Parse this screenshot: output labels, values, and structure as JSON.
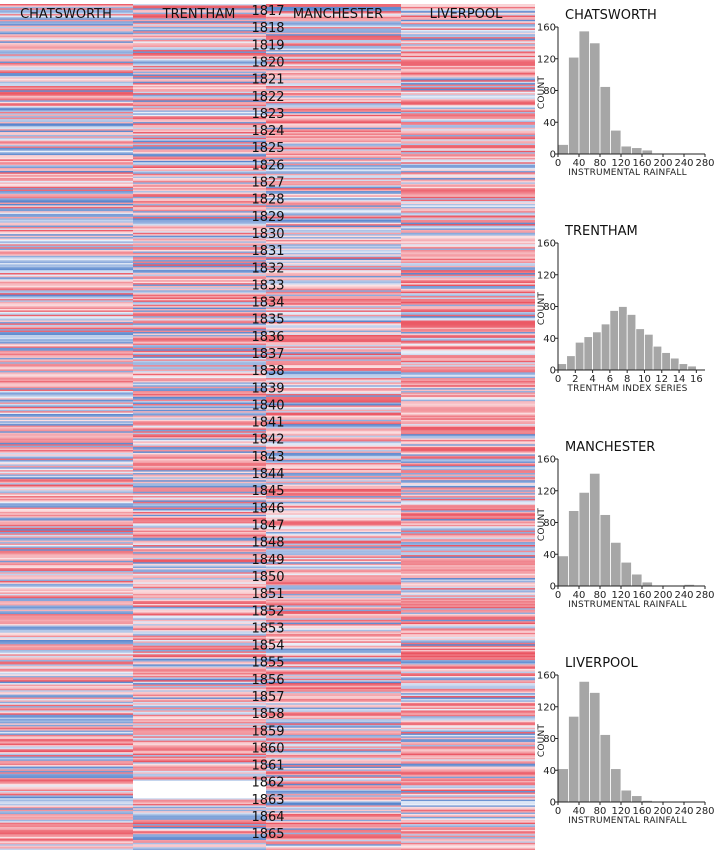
{
  "stripe_columns": [
    "CHATSWORTH",
    "TRENTHAM",
    "MANCHESTER",
    "LIVERPOOL"
  ],
  "years": [
    "1817",
    "1818",
    "1819",
    "1820",
    "1821",
    "1822",
    "1823",
    "1824",
    "1825",
    "1826",
    "1827",
    "1828",
    "1829",
    "1830",
    "1831",
    "1832",
    "1833",
    "1834",
    "1835",
    "1836",
    "1837",
    "1838",
    "1839",
    "1840",
    "1841",
    "1842",
    "1843",
    "1844",
    "1845",
    "1846",
    "1847",
    "1848",
    "1849",
    "1850",
    "1851",
    "1852",
    "1853",
    "1854",
    "1855",
    "1856",
    "1857",
    "1858",
    "1859",
    "1860",
    "1861",
    "1862",
    "1863",
    "1864",
    "1865"
  ],
  "colors": {
    "wet": "#3a6fc4",
    "dry": "#e8414f",
    "bar": "#a6a6a6",
    "bar_stroke": "#ffffff",
    "axis": "#222222"
  },
  "chart_data": [
    {
      "type": "heatmap",
      "title": "",
      "columns": [
        "CHATSWORTH",
        "TRENTHAM",
        "MANCHESTER",
        "LIVERPOOL"
      ],
      "x_labels": [
        "1817",
        "1818",
        "1819",
        "1820",
        "1821",
        "1822",
        "1823",
        "1824",
        "1825",
        "1826",
        "1827",
        "1828",
        "1829",
        "1830",
        "1831",
        "1832",
        "1833",
        "1834",
        "1835",
        "1836",
        "1837",
        "1838",
        "1839",
        "1840",
        "1841",
        "1842",
        "1843",
        "1844",
        "1845",
        "1846",
        "1847",
        "1848",
        "1849",
        "1850",
        "1851",
        "1852",
        "1853",
        "1854",
        "1855",
        "1856",
        "1857",
        "1858",
        "1859",
        "1860",
        "1861",
        "1862",
        "1863",
        "1864",
        "1865"
      ],
      "year_range": [
        1817,
        1865
      ],
      "color_scale": "blue (wet) to white to red (dry)",
      "rows_per_year": 12
    },
    {
      "type": "bar",
      "title": "CHATSWORTH",
      "xlabel": "INSTRUMENTAL RAINFALL",
      "ylabel": "COUNT",
      "bin_width": 20,
      "bin_start": 0,
      "xlim": [
        0,
        280
      ],
      "ylim": [
        0,
        160
      ],
      "xticks": [
        0,
        40,
        80,
        120,
        160,
        200,
        240,
        280
      ],
      "yticks": [
        0,
        40,
        80,
        120,
        160
      ],
      "values": [
        12,
        122,
        155,
        140,
        85,
        30,
        10,
        8,
        5,
        1,
        0,
        0,
        0,
        0
      ]
    },
    {
      "type": "bar",
      "title": "TRENTHAM",
      "xlabel": "TRENTHAM INDEX SERIES",
      "ylabel": "COUNT",
      "bin_width": 1,
      "bin_start": 0,
      "xlim": [
        0,
        17
      ],
      "ylim": [
        0,
        160
      ],
      "xticks": [
        0,
        2,
        4,
        6,
        8,
        10,
        12,
        14,
        16
      ],
      "yticks": [
        0,
        40,
        80,
        120,
        160
      ],
      "values": [
        8,
        18,
        35,
        42,
        48,
        58,
        75,
        80,
        70,
        52,
        45,
        30,
        22,
        15,
        8,
        5
      ]
    },
    {
      "type": "bar",
      "title": "MANCHESTER",
      "xlabel": "INSTRUMENTAL RAINFALL",
      "ylabel": "COUNT",
      "bin_width": 20,
      "bin_start": 0,
      "xlim": [
        0,
        280
      ],
      "ylim": [
        0,
        160
      ],
      "xticks": [
        0,
        40,
        80,
        120,
        160,
        200,
        240,
        280
      ],
      "yticks": [
        0,
        40,
        80,
        120,
        160
      ],
      "values": [
        38,
        95,
        118,
        142,
        90,
        55,
        30,
        15,
        5,
        0,
        0,
        0,
        2,
        0
      ]
    },
    {
      "type": "bar",
      "title": "LIVERPOOL",
      "xlabel": "INSTRUMENTAL RAINFALL",
      "ylabel": "COUNT",
      "bin_width": 20,
      "bin_start": 0,
      "xlim": [
        0,
        280
      ],
      "ylim": [
        0,
        160
      ],
      "xticks": [
        0,
        40,
        80,
        120,
        160,
        200,
        240,
        280
      ],
      "yticks": [
        0,
        40,
        80,
        120,
        160
      ],
      "values": [
        42,
        108,
        152,
        138,
        85,
        42,
        15,
        8,
        2,
        1,
        0,
        0,
        0,
        0
      ]
    }
  ]
}
